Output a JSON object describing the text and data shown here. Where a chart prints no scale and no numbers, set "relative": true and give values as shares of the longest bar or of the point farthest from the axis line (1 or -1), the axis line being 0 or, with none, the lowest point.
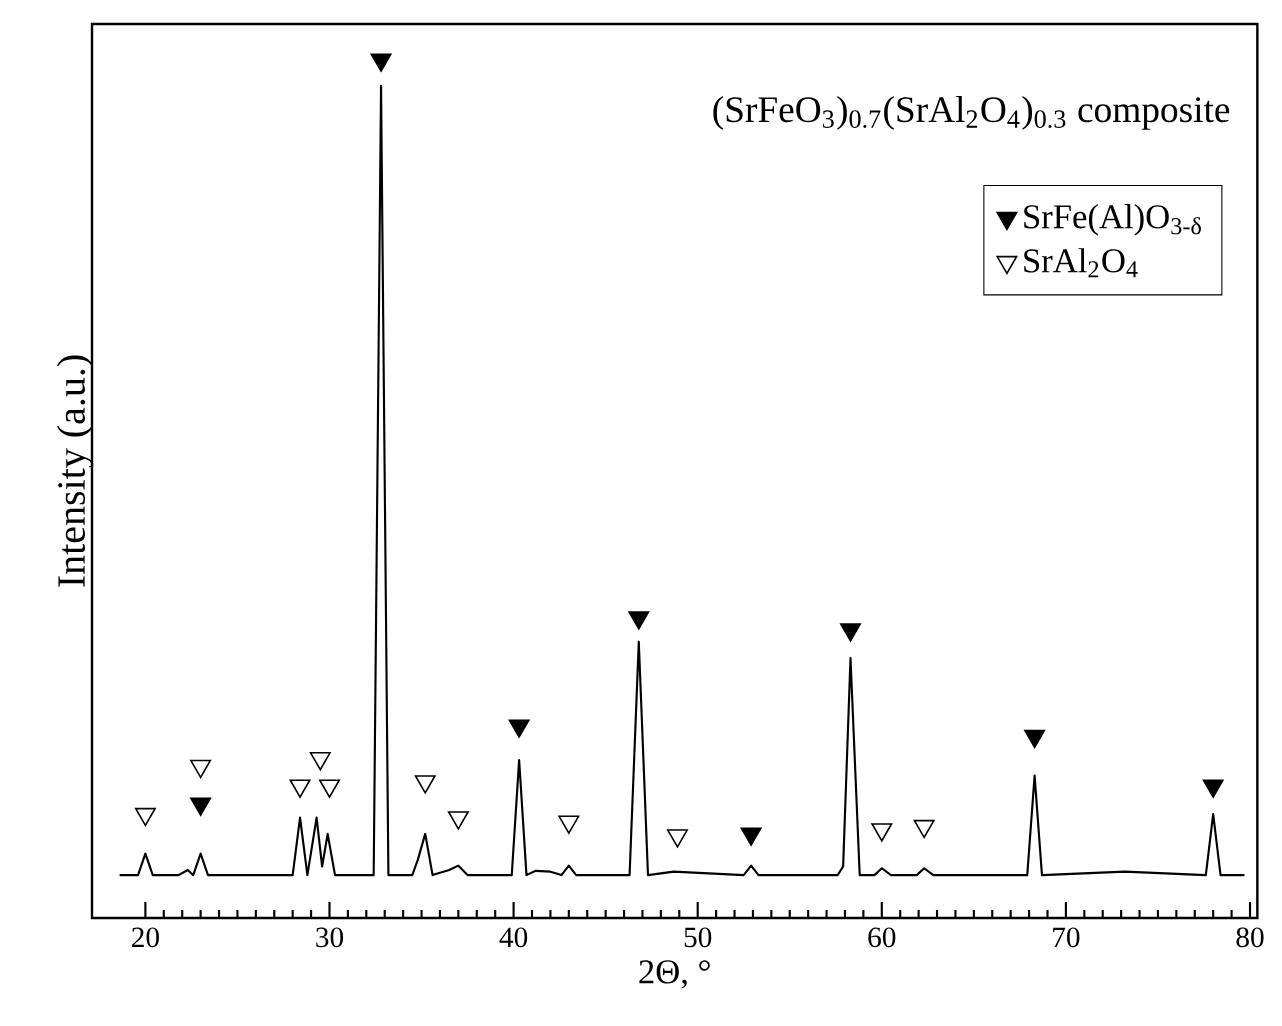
{
  "chart_data": {
    "type": "line",
    "relative": true,
    "xlabel": "2Θ, °",
    "ylabel": "Intensity (a.u.)",
    "annotations": [
      "(SrFeO$_{3}$)$_{0.7}$(SrAl$_{2}$O$_{4}$)$_{0.3}$  composite"
    ],
    "xlim": [
      17.1,
      80.4
    ],
    "xticks": [
      20,
      30,
      40,
      50,
      60,
      70,
      80
    ],
    "tick_labels": "x",
    "legend": "top right",
    "grid": false,
    "series": [
      {
        "color": "#000000",
        "marker": "none",
        "x": [
          18.6,
          19.6,
          20.0,
          20.4,
          21.8,
          22.3,
          22.6,
          23.0,
          23.4,
          28.0,
          28.4,
          28.8,
          29.3,
          29.6,
          29.9,
          30.3,
          32.4,
          32.8,
          33.2,
          34.5,
          34.8,
          35.2,
          35.6,
          36.5,
          37.0,
          37.5,
          39.9,
          40.3,
          40.7,
          41.2,
          42.0,
          42.6,
          43.0,
          43.4,
          46.3,
          46.8,
          47.3,
          48.7,
          52.5,
          52.9,
          53.3,
          57.6,
          57.9,
          58.3,
          58.8,
          59.6,
          60.0,
          60.5,
          61.9,
          62.3,
          62.8,
          67.9,
          68.3,
          68.7,
          73.2,
          77.6,
          78.0,
          78.4,
          79.7
        ],
        "values": [
          0.05,
          0.05,
          0.075,
          0.05,
          0.05,
          0.056,
          0.05,
          0.075,
          0.05,
          0.05,
          0.117,
          0.05,
          0.117,
          0.06,
          0.098,
          0.05,
          0.05,
          0.97,
          0.05,
          0.05,
          0.068,
          0.098,
          0.05,
          0.056,
          0.061,
          0.05,
          0.05,
          0.184,
          0.05,
          0.055,
          0.054,
          0.05,
          0.061,
          0.05,
          0.05,
          0.322,
          0.05,
          0.054,
          0.05,
          0.061,
          0.05,
          0.05,
          0.06,
          0.303,
          0.05,
          0.05,
          0.058,
          0.05,
          0.05,
          0.058,
          0.05,
          0.05,
          0.166,
          0.05,
          0.054,
          0.05,
          0.121,
          0.05,
          0.05
        ]
      },
      {
        "type": "scatter",
        "name": "SrFe(Al)O$_{3-δ}$",
        "color": "#000000",
        "marker": "triangle",
        "x": [
          23.0,
          32.8,
          40.3,
          46.8,
          52.9,
          58.3,
          68.3,
          78.0
        ],
        "values": [
          0.133,
          1.0,
          0.224,
          0.35,
          0.098,
          0.336,
          0.212,
          0.154
        ]
      },
      {
        "type": "scatter",
        "name": "SrAl$_{2}$O$_{4}$",
        "color": "#ffffff",
        "marker": "triangle",
        "x": [
          20.0,
          23.0,
          28.4,
          29.5,
          30.0,
          35.2,
          37.0,
          43.0,
          48.9,
          60.0,
          62.3
        ],
        "values": [
          0.121,
          0.177,
          0.154,
          0.186,
          0.154,
          0.159,
          0.117,
          0.112,
          0.096,
          0.103,
          0.107
        ]
      }
    ]
  }
}
